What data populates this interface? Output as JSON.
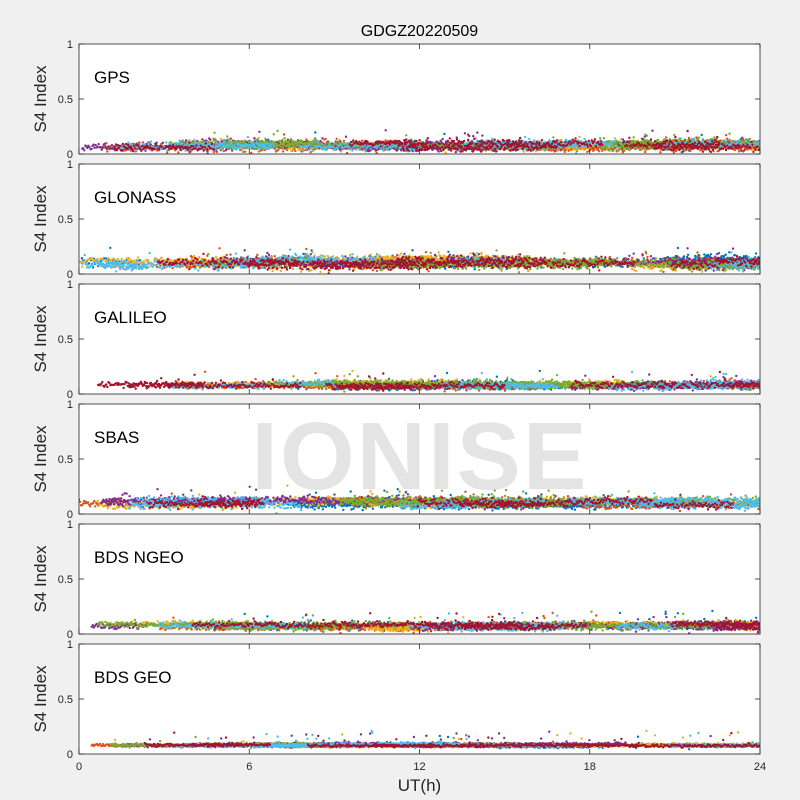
{
  "figure_title": "GDGZ20220509",
  "watermark": "IONISE",
  "colors": {
    "series": [
      "#0072BD",
      "#D95319",
      "#EDB120",
      "#7E2F8E",
      "#77AC30",
      "#4DBEEE",
      "#A2142F"
    ],
    "background": "#f0f0f0",
    "axes_background": "#ffffff",
    "axis": "#262626"
  },
  "chart_data": [
    {
      "type": "scatter",
      "panel_label": "GPS",
      "ylabel": "S4 Index",
      "xlabel": "",
      "xlim": [
        0,
        24
      ],
      "ylim": [
        0,
        1
      ],
      "x_ticks": [
        0,
        6,
        12,
        18,
        24
      ],
      "y_ticks": [
        0,
        0.5,
        1
      ],
      "y_tick_labels": [
        "0",
        "0.5",
        "1"
      ],
      "grid": false,
      "series_count": 7,
      "base_level": 0.08,
      "spread": 0.05
    },
    {
      "type": "scatter",
      "panel_label": "GLONASS",
      "ylabel": "S4 Index",
      "xlabel": "",
      "xlim": [
        0,
        24
      ],
      "ylim": [
        0,
        1
      ],
      "x_ticks": [
        0,
        6,
        12,
        18,
        24
      ],
      "y_ticks": [
        0,
        0.5,
        1
      ],
      "y_tick_labels": [
        "0",
        "0.5",
        "1"
      ],
      "grid": false,
      "series_count": 7,
      "base_level": 0.1,
      "spread": 0.06
    },
    {
      "type": "scatter",
      "panel_label": "GALILEO",
      "ylabel": "S4 Index",
      "xlabel": "",
      "xlim": [
        0,
        24
      ],
      "ylim": [
        0,
        1
      ],
      "x_ticks": [
        0,
        6,
        12,
        18,
        24
      ],
      "y_ticks": [
        0,
        0.5,
        1
      ],
      "y_tick_labels": [
        "0",
        "0.5",
        "1"
      ],
      "grid": false,
      "series_count": 7,
      "base_level": 0.08,
      "spread": 0.04
    },
    {
      "type": "scatter",
      "panel_label": "SBAS",
      "ylabel": "S4 Index",
      "xlabel": "",
      "xlim": [
        0,
        24
      ],
      "ylim": [
        0,
        1
      ],
      "x_ticks": [
        0,
        6,
        12,
        18,
        24
      ],
      "y_ticks": [
        0,
        0.5,
        1
      ],
      "y_tick_labels": [
        "0",
        "0.5",
        "1"
      ],
      "grid": false,
      "series_count": 7,
      "base_level": 0.1,
      "spread": 0.05
    },
    {
      "type": "scatter",
      "panel_label": "BDS NGEO",
      "ylabel": "S4 Index",
      "xlabel": "",
      "xlim": [
        0,
        24
      ],
      "ylim": [
        0,
        1
      ],
      "x_ticks": [
        0,
        6,
        12,
        18,
        24
      ],
      "y_ticks": [
        0,
        0.5,
        1
      ],
      "y_tick_labels": [
        "0",
        "0.5",
        "1"
      ],
      "grid": false,
      "series_count": 7,
      "base_level": 0.07,
      "spread": 0.04
    },
    {
      "type": "scatter",
      "panel_label": "BDS GEO",
      "ylabel": "S4 Index",
      "xlabel": "UT(h)",
      "xlim": [
        0,
        24
      ],
      "ylim": [
        0,
        1
      ],
      "x_ticks": [
        0,
        6,
        12,
        18,
        24
      ],
      "y_ticks": [
        0,
        0.5,
        1
      ],
      "y_tick_labels": [
        "0",
        "0.5",
        "1"
      ],
      "x_tick_labels": [
        "0",
        "6",
        "12",
        "18",
        "24"
      ],
      "grid": false,
      "series_count": 7,
      "base_level": 0.08,
      "spread": 0.02
    }
  ]
}
